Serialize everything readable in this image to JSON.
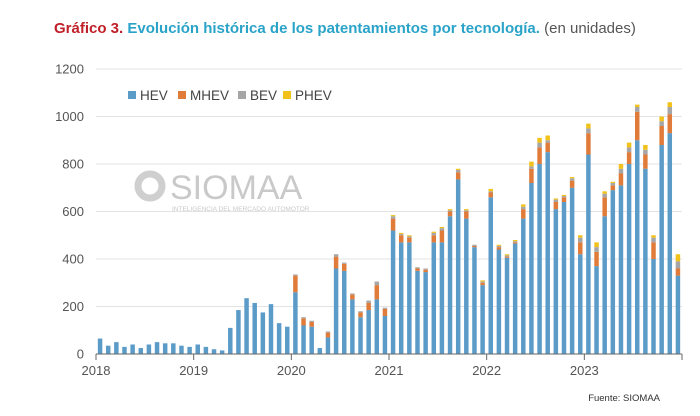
{
  "title": {
    "label": "Gráfico 3.",
    "main": "Evolución histórica de los patentamientos por tecnología.",
    "sub": "(en unidades)"
  },
  "source": "Fuente: SIOMAA",
  "watermark": {
    "name": "SIOMAA",
    "tagline": "INTELIGENCIA DEL MERCADO AUTOMOTOR"
  },
  "colors": {
    "HEV": "#5b9bc8",
    "MHEV": "#e07b3a",
    "BEV": "#a6a6a6",
    "PHEV": "#f2c21b"
  },
  "chart_data": {
    "type": "bar",
    "stacked": true,
    "ylim": [
      0,
      1200
    ],
    "yticks": [
      0,
      200,
      400,
      600,
      800,
      1000,
      1200
    ],
    "xtick_labels": [
      "2018",
      "2019",
      "2020",
      "2021",
      "2022",
      "2023"
    ],
    "legend_position": "top-left",
    "grid": true,
    "start": "2018-01",
    "series": [
      {
        "name": "HEV",
        "values": [
          65,
          35,
          50,
          30,
          40,
          25,
          40,
          50,
          45,
          45,
          35,
          30,
          40,
          30,
          20,
          15,
          110,
          185,
          235,
          215,
          175,
          210,
          130,
          115,
          260,
          120,
          115,
          25,
          70,
          360,
          350,
          230,
          155,
          185,
          230,
          160,
          520,
          470,
          470,
          350,
          345,
          470,
          470,
          580,
          735,
          570,
          450,
          290,
          660,
          440,
          405,
          465,
          570,
          720,
          800,
          850,
          610,
          640,
          700,
          420,
          840,
          370,
          580,
          690,
          710,
          800,
          900,
          780,
          400,
          880,
          930,
          330
        ]
      },
      {
        "name": "MHEV",
        "values": [
          0,
          0,
          0,
          0,
          0,
          0,
          0,
          0,
          0,
          0,
          0,
          0,
          0,
          0,
          0,
          0,
          0,
          0,
          0,
          0,
          0,
          0,
          0,
          0,
          70,
          30,
          20,
          0,
          20,
          50,
          30,
          20,
          20,
          30,
          60,
          30,
          50,
          30,
          20,
          10,
          10,
          30,
          50,
          20,
          30,
          30,
          5,
          10,
          20,
          10,
          5,
          5,
          40,
          60,
          70,
          40,
          30,
          20,
          30,
          50,
          90,
          60,
          80,
          20,
          50,
          50,
          120,
          60,
          70,
          80,
          80,
          30
        ]
      },
      {
        "name": "BEV",
        "values": [
          0,
          0,
          0,
          0,
          0,
          0,
          0,
          0,
          0,
          0,
          0,
          0,
          0,
          0,
          0,
          0,
          0,
          0,
          0,
          0,
          0,
          0,
          0,
          0,
          5,
          5,
          5,
          0,
          5,
          10,
          5,
          5,
          5,
          10,
          15,
          5,
          10,
          5,
          5,
          5,
          5,
          10,
          10,
          5,
          10,
          5,
          5,
          5,
          5,
          5,
          5,
          5,
          10,
          10,
          20,
          10,
          10,
          5,
          10,
          20,
          20,
          20,
          15,
          10,
          20,
          20,
          20,
          20,
          20,
          20,
          30,
          30
        ]
      },
      {
        "name": "PHEV",
        "values": [
          0,
          0,
          0,
          0,
          0,
          0,
          0,
          0,
          0,
          0,
          0,
          0,
          0,
          0,
          0,
          0,
          0,
          0,
          0,
          0,
          0,
          0,
          0,
          0,
          0,
          0,
          0,
          0,
          0,
          0,
          0,
          0,
          0,
          0,
          0,
          0,
          5,
          5,
          5,
          0,
          0,
          5,
          5,
          5,
          5,
          5,
          0,
          5,
          10,
          5,
          5,
          5,
          10,
          20,
          20,
          20,
          5,
          5,
          5,
          10,
          20,
          20,
          10,
          5,
          20,
          20,
          10,
          20,
          10,
          20,
          20,
          30
        ]
      }
    ]
  }
}
